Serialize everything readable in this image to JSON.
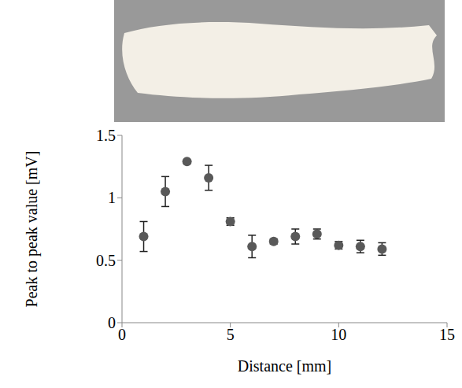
{
  "chart_data": {
    "type": "scatter",
    "x_label": "Distance [mm]",
    "y_label": "Peak to peak value [mV]",
    "x": [
      1,
      2,
      3,
      4,
      5,
      6,
      7,
      8,
      9,
      10,
      11,
      12
    ],
    "values": [
      0.69,
      1.05,
      1.29,
      1.16,
      0.81,
      0.61,
      0.65,
      0.69,
      0.71,
      0.62,
      0.61,
      0.59
    ],
    "errors": [
      0.12,
      0.12,
      0.01,
      0.1,
      0.03,
      0.09,
      0.02,
      0.06,
      0.04,
      0.03,
      0.05,
      0.05
    ],
    "color": "#595959",
    "marker": "circle",
    "xlim": [
      0,
      15
    ],
    "xticks": [
      0,
      5,
      10,
      15
    ],
    "ylim": [
      0,
      1.5
    ],
    "yticks": [
      0,
      0.5,
      1,
      1.5
    ],
    "grid": false
  }
}
